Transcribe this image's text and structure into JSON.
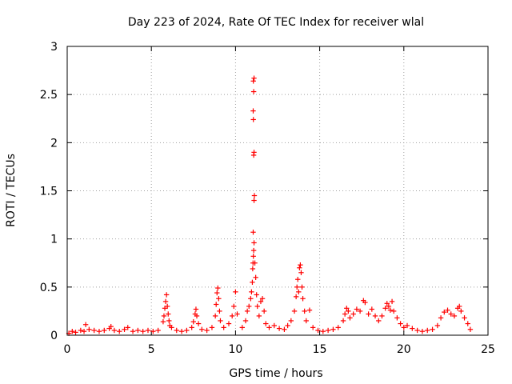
{
  "chart_data": {
    "type": "scatter",
    "title": "Day 223 of 2024, Rate Of TEC Index for receiver wlal",
    "xlabel": "GPS time / hours",
    "ylabel": "ROTI / TECUs",
    "xlim": [
      0,
      25
    ],
    "ylim": [
      0,
      3
    ],
    "xticks": [
      0,
      5,
      10,
      15,
      20,
      25
    ],
    "yticks": [
      0,
      0.5,
      1,
      1.5,
      2,
      2.5,
      3
    ],
    "xtick_labels": [
      "0",
      "5",
      "10",
      "15",
      "20",
      "25"
    ],
    "ytick_labels": [
      "0",
      "0.5",
      "1",
      "1.5",
      "2",
      "2.5",
      "3"
    ],
    "grid": true,
    "marker": "+",
    "color": "#ff0000",
    "series": [
      {
        "points": [
          [
            0.1,
            0.02
          ],
          [
            0.3,
            0.04
          ],
          [
            0.5,
            0.03
          ],
          [
            0.8,
            0.05
          ],
          [
            1.0,
            0.04
          ],
          [
            1.1,
            0.11
          ],
          [
            1.3,
            0.06
          ],
          [
            1.6,
            0.05
          ],
          [
            1.9,
            0.04
          ],
          [
            2.2,
            0.05
          ],
          [
            2.5,
            0.07
          ],
          [
            2.6,
            0.09
          ],
          [
            2.8,
            0.05
          ],
          [
            3.1,
            0.04
          ],
          [
            3.4,
            0.06
          ],
          [
            3.6,
            0.08
          ],
          [
            3.9,
            0.04
          ],
          [
            4.2,
            0.05
          ],
          [
            4.5,
            0.04
          ],
          [
            4.8,
            0.05
          ],
          [
            5.1,
            0.04
          ],
          [
            5.4,
            0.05
          ],
          [
            5.7,
            0.14
          ],
          [
            5.75,
            0.2
          ],
          [
            5.8,
            0.28
          ],
          [
            5.85,
            0.35
          ],
          [
            5.9,
            0.42
          ],
          [
            5.95,
            0.3
          ],
          [
            6.0,
            0.22
          ],
          [
            6.05,
            0.15
          ],
          [
            6.1,
            0.1
          ],
          [
            6.2,
            0.08
          ],
          [
            6.5,
            0.05
          ],
          [
            6.8,
            0.04
          ],
          [
            7.1,
            0.05
          ],
          [
            7.4,
            0.08
          ],
          [
            7.5,
            0.14
          ],
          [
            7.6,
            0.22
          ],
          [
            7.65,
            0.27
          ],
          [
            7.7,
            0.2
          ],
          [
            7.8,
            0.12
          ],
          [
            8.0,
            0.06
          ],
          [
            8.3,
            0.05
          ],
          [
            8.6,
            0.08
          ],
          [
            8.8,
            0.2
          ],
          [
            8.85,
            0.32
          ],
          [
            8.9,
            0.44
          ],
          [
            8.95,
            0.49
          ],
          [
            9.0,
            0.38
          ],
          [
            9.05,
            0.25
          ],
          [
            9.1,
            0.15
          ],
          [
            9.3,
            0.08
          ],
          [
            9.6,
            0.12
          ],
          [
            9.8,
            0.2
          ],
          [
            9.9,
            0.3
          ],
          [
            10.0,
            0.45
          ],
          [
            10.1,
            0.22
          ],
          [
            10.4,
            0.08
          ],
          [
            10.6,
            0.15
          ],
          [
            10.7,
            0.25
          ],
          [
            10.8,
            0.3
          ],
          [
            10.9,
            0.38
          ],
          [
            10.95,
            0.45
          ],
          [
            11.0,
            0.55
          ],
          [
            11.02,
            0.69
          ],
          [
            11.04,
            0.75
          ],
          [
            11.06,
            0.82
          ],
          [
            11.08,
            0.88
          ],
          [
            11.1,
            0.96
          ],
          [
            11.05,
            1.07
          ],
          [
            11.1,
            1.4
          ],
          [
            11.12,
            1.45
          ],
          [
            11.08,
            1.87
          ],
          [
            11.1,
            1.9
          ],
          [
            11.06,
            2.24
          ],
          [
            11.05,
            2.33
          ],
          [
            11.08,
            2.53
          ],
          [
            11.06,
            2.64
          ],
          [
            11.1,
            2.67
          ],
          [
            11.15,
            0.75
          ],
          [
            11.2,
            0.6
          ],
          [
            11.25,
            0.42
          ],
          [
            11.3,
            0.3
          ],
          [
            11.4,
            0.2
          ],
          [
            11.5,
            0.35
          ],
          [
            11.6,
            0.38
          ],
          [
            11.7,
            0.25
          ],
          [
            11.8,
            0.12
          ],
          [
            12.0,
            0.08
          ],
          [
            12.3,
            0.1
          ],
          [
            12.6,
            0.07
          ],
          [
            12.9,
            0.06
          ],
          [
            13.1,
            0.1
          ],
          [
            13.3,
            0.15
          ],
          [
            13.5,
            0.25
          ],
          [
            13.6,
            0.4
          ],
          [
            13.65,
            0.5
          ],
          [
            13.7,
            0.58
          ],
          [
            13.75,
            0.45
          ],
          [
            13.8,
            0.7
          ],
          [
            13.85,
            0.73
          ],
          [
            13.9,
            0.65
          ],
          [
            13.95,
            0.5
          ],
          [
            14.0,
            0.38
          ],
          [
            14.1,
            0.25
          ],
          [
            14.2,
            0.15
          ],
          [
            14.4,
            0.26
          ],
          [
            14.6,
            0.08
          ],
          [
            14.9,
            0.05
          ],
          [
            15.2,
            0.04
          ],
          [
            15.5,
            0.05
          ],
          [
            15.8,
            0.06
          ],
          [
            16.1,
            0.08
          ],
          [
            16.4,
            0.15
          ],
          [
            16.5,
            0.22
          ],
          [
            16.6,
            0.28
          ],
          [
            16.7,
            0.25
          ],
          [
            16.8,
            0.18
          ],
          [
            17.0,
            0.22
          ],
          [
            17.2,
            0.27
          ],
          [
            17.4,
            0.25
          ],
          [
            17.6,
            0.36
          ],
          [
            17.7,
            0.34
          ],
          [
            17.9,
            0.22
          ],
          [
            18.1,
            0.27
          ],
          [
            18.3,
            0.2
          ],
          [
            18.5,
            0.15
          ],
          [
            18.7,
            0.2
          ],
          [
            18.9,
            0.28
          ],
          [
            19.0,
            0.33
          ],
          [
            19.1,
            0.3
          ],
          [
            19.2,
            0.26
          ],
          [
            19.3,
            0.35
          ],
          [
            19.4,
            0.25
          ],
          [
            19.6,
            0.18
          ],
          [
            19.8,
            0.12
          ],
          [
            20.0,
            0.08
          ],
          [
            20.2,
            0.1
          ],
          [
            20.5,
            0.07
          ],
          [
            20.8,
            0.05
          ],
          [
            21.1,
            0.04
          ],
          [
            21.4,
            0.05
          ],
          [
            21.7,
            0.06
          ],
          [
            22.0,
            0.1
          ],
          [
            22.2,
            0.18
          ],
          [
            22.4,
            0.24
          ],
          [
            22.6,
            0.26
          ],
          [
            22.8,
            0.22
          ],
          [
            23.0,
            0.2
          ],
          [
            23.2,
            0.28
          ],
          [
            23.3,
            0.3
          ],
          [
            23.4,
            0.25
          ],
          [
            23.6,
            0.18
          ],
          [
            23.8,
            0.12
          ],
          [
            23.95,
            0.06
          ]
        ]
      }
    ]
  }
}
